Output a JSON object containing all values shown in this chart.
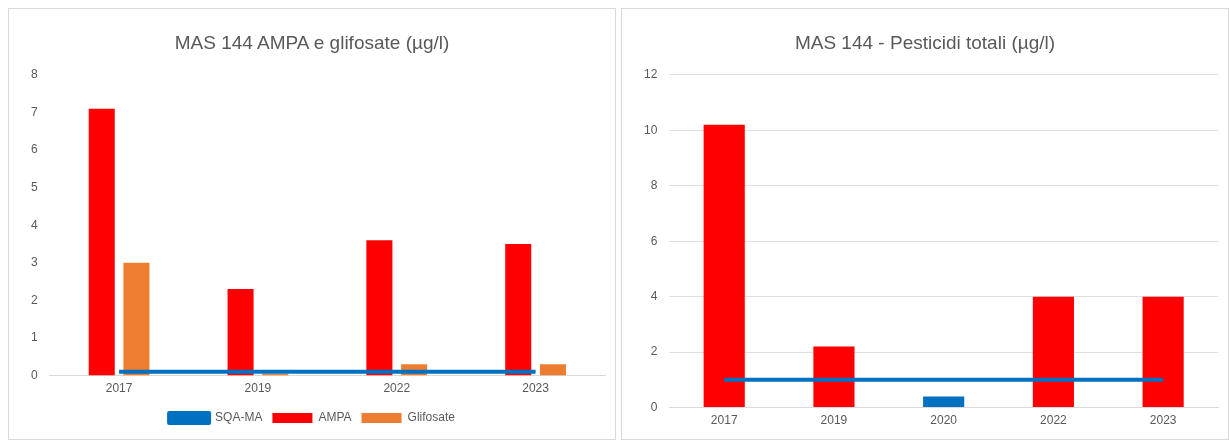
{
  "chart_data": [
    {
      "type": "bar",
      "title": "MAS 144 AMPA e glifosate (µg/l)",
      "categories": [
        "2017",
        "2019",
        "2022",
        "2023"
      ],
      "ylim": [
        0,
        8
      ],
      "yticks": [
        0,
        1,
        2,
        3,
        4,
        5,
        6,
        7,
        8
      ],
      "grid": false,
      "legend": "bottom",
      "marker": "none",
      "series": [
        {
          "name": "AMPA",
          "color": "#ff0000",
          "values": [
            7.1,
            2.3,
            3.6,
            3.5
          ]
        },
        {
          "name": "Glifosate",
          "color": "#ed7d31",
          "values": [
            3.0,
            0.05,
            0.3,
            0.3
          ]
        },
        {
          "name": "SQA-MA",
          "type": "line",
          "color": "#0070c0",
          "values": [
            0.1,
            0.1,
            0.1,
            0.1
          ]
        }
      ]
    },
    {
      "type": "bar",
      "title": "MAS 144 - Pesticidi totali (µg/l)",
      "categories": [
        "2017",
        "2019",
        "2020",
        "2022",
        "2023"
      ],
      "ylim": [
        0,
        12
      ],
      "yticks": [
        0,
        2,
        4,
        6,
        8,
        10,
        12
      ],
      "grid": "y",
      "legend": false,
      "marker": "none",
      "series": [
        {
          "colors": [
            "#ff0000",
            "#ff0000",
            "#0070c0",
            "#ff0000",
            "#ff0000"
          ],
          "values": [
            10.2,
            2.2,
            0.4,
            4.0,
            4.0
          ]
        },
        {
          "type": "line",
          "color": "#0070c0",
          "values": [
            1,
            1,
            1,
            1,
            1
          ]
        }
      ]
    }
  ]
}
